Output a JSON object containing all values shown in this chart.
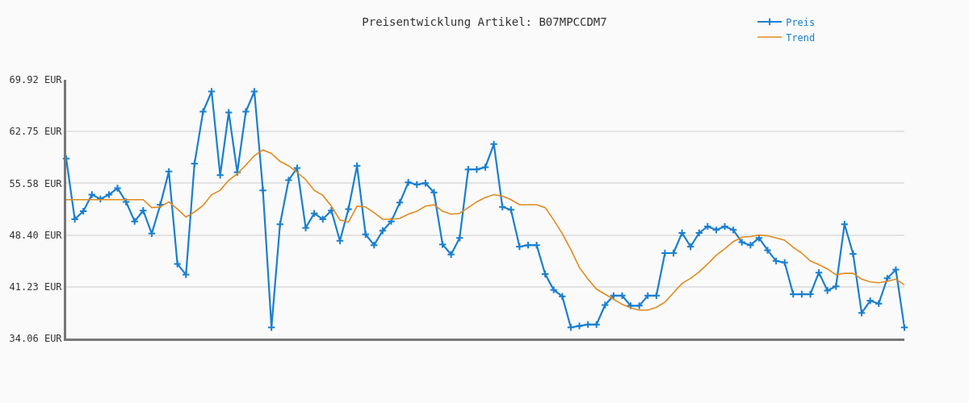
{
  "chart_data": {
    "type": "line",
    "title": "Preisentwicklung Artikel: B07MPCCDM7",
    "categories": [
      null,
      null,
      null,
      null,
      null,
      null,
      null,
      null,
      null,
      null,
      null,
      null,
      null,
      null,
      null,
      null,
      null,
      null,
      null,
      null,
      null,
      null,
      null,
      null,
      null,
      null,
      null,
      null,
      null,
      null,
      null,
      null,
      null,
      null,
      null,
      null,
      null,
      null,
      null,
      null,
      null,
      null,
      null,
      null,
      null,
      null,
      null,
      null,
      null,
      null,
      null,
      null,
      null,
      null,
      null,
      null,
      null,
      null,
      null,
      null,
      null,
      null,
      null,
      null,
      null,
      null,
      null,
      null,
      null,
      null,
      null,
      null,
      null,
      null,
      null,
      null,
      null,
      null,
      null,
      null,
      null,
      null,
      null,
      null,
      null,
      null,
      null,
      null,
      null,
      null,
      null,
      null,
      null,
      null,
      null,
      null,
      null,
      null,
      null
    ],
    "series": [
      {
        "name": "Preis",
        "color": "#1a7fcf",
        "marker": "cross",
        "values": [
          59.0,
          50.6,
          51.7,
          54.0,
          53.4,
          54.0,
          54.9,
          53.0,
          50.3,
          51.8,
          48.6,
          52.6,
          57.2,
          44.4,
          42.9,
          58.3,
          65.5,
          68.3,
          56.7,
          65.4,
          57.1,
          65.5,
          68.3,
          54.6,
          35.6,
          49.9,
          56.0,
          57.7,
          49.4,
          51.4,
          50.6,
          51.8,
          47.6,
          52.0,
          58.0,
          48.5,
          47.0,
          49.0,
          50.3,
          52.9,
          55.7,
          55.4,
          55.6,
          54.3,
          47.1,
          45.7,
          48.0,
          57.5,
          57.5,
          57.8,
          61.0,
          52.3,
          51.9,
          46.8,
          47.0,
          47.0,
          43.0,
          40.8,
          39.9,
          35.6,
          35.8,
          36.0,
          36.0,
          38.7,
          40.0,
          40.0,
          38.6,
          38.6,
          40.0,
          40.0,
          45.9,
          45.9,
          48.7,
          46.8,
          48.7,
          49.6,
          49.1,
          49.6,
          49.1,
          47.4,
          47.0,
          48.0,
          46.3,
          44.8,
          44.6,
          40.2,
          40.2,
          40.2,
          43.2,
          40.7,
          41.3,
          49.9,
          45.8,
          37.6,
          39.3,
          38.9,
          42.4,
          43.6,
          35.6
        ]
      },
      {
        "name": "Trend",
        "color": "#e08a1e",
        "marker": "none",
        "values": [
          53.3,
          53.3,
          53.3,
          53.3,
          53.3,
          53.3,
          53.3,
          53.3,
          53.3,
          53.3,
          52.2,
          52.3,
          53.0,
          52.0,
          50.9,
          51.6,
          52.5,
          54.0,
          54.6,
          56.0,
          56.9,
          58.1,
          59.4,
          60.2,
          59.7,
          58.6,
          58.0,
          57.1,
          56.1,
          54.6,
          53.9,
          52.4,
          50.5,
          50.2,
          52.4,
          52.3,
          51.5,
          50.6,
          50.6,
          50.7,
          51.3,
          51.7,
          52.4,
          52.6,
          51.7,
          51.3,
          51.4,
          52.2,
          53.0,
          53.6,
          54.0,
          53.8,
          53.3,
          52.6,
          52.6,
          52.6,
          52.2,
          50.5,
          48.6,
          46.4,
          43.9,
          42.3,
          40.9,
          40.2,
          39.5,
          38.8,
          38.3,
          38.0,
          38.0,
          38.4,
          39.1,
          40.4,
          41.7,
          42.4,
          43.3,
          44.4,
          45.6,
          46.5,
          47.5,
          48.1,
          48.2,
          48.4,
          48.3,
          48.0,
          47.7,
          46.7,
          45.9,
          44.8,
          44.3,
          43.7,
          42.9,
          43.1,
          43.1,
          42.3,
          41.9,
          41.8,
          42.0,
          42.3,
          41.5
        ]
      }
    ],
    "ylim": [
      34.06,
      69.92
    ],
    "yticks": [
      {
        "value": 34.06,
        "label": "34.06 EUR"
      },
      {
        "value": 41.23,
        "label": "41.23 EUR"
      },
      {
        "value": 48.4,
        "label": "48.40 EUR"
      },
      {
        "value": 55.58,
        "label": "55.58 EUR"
      },
      {
        "value": 62.75,
        "label": "62.75 EUR"
      },
      {
        "value": 69.92,
        "label": "69.92 EUR"
      }
    ],
    "grid": "y",
    "legend": "top right",
    "tick_labels": "y",
    "line_style": "solid"
  }
}
